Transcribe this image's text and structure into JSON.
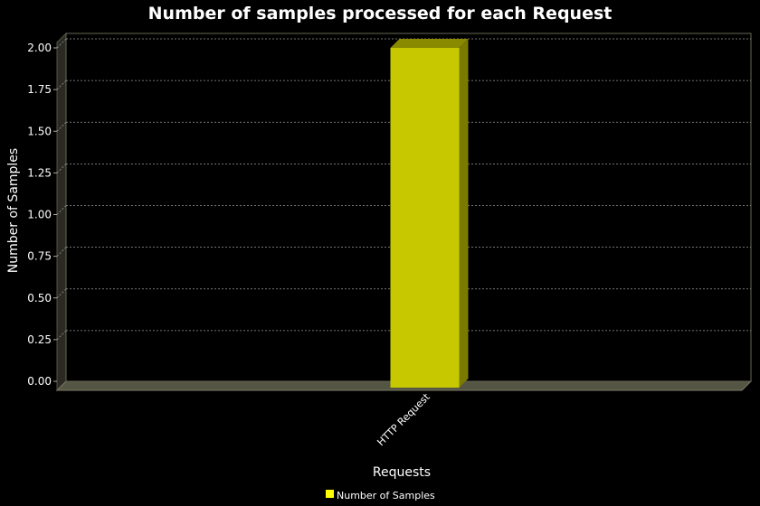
{
  "colors": {
    "background": "#000000",
    "series": "#c8c800",
    "series_top": "#8a8a00",
    "series_side": "#7a7a00",
    "grid": "#9a9a9a",
    "wall": "#555544",
    "text": "#ffffff"
  },
  "chart_data": {
    "type": "bar",
    "title": "Number of samples processed for each Request",
    "xlabel": "Requests",
    "ylabel": "Number of Samples",
    "categories": [
      "HTTP Request"
    ],
    "series": [
      {
        "name": "Number of Samples",
        "values": [
          2
        ]
      }
    ],
    "ylim": [
      0,
      2
    ],
    "yticks": [
      "0.00",
      "0.25",
      "0.50",
      "0.75",
      "1.00",
      "1.25",
      "1.50",
      "1.75",
      "2.00"
    ],
    "grid": true,
    "legend_position": "bottom",
    "style": "3d"
  }
}
